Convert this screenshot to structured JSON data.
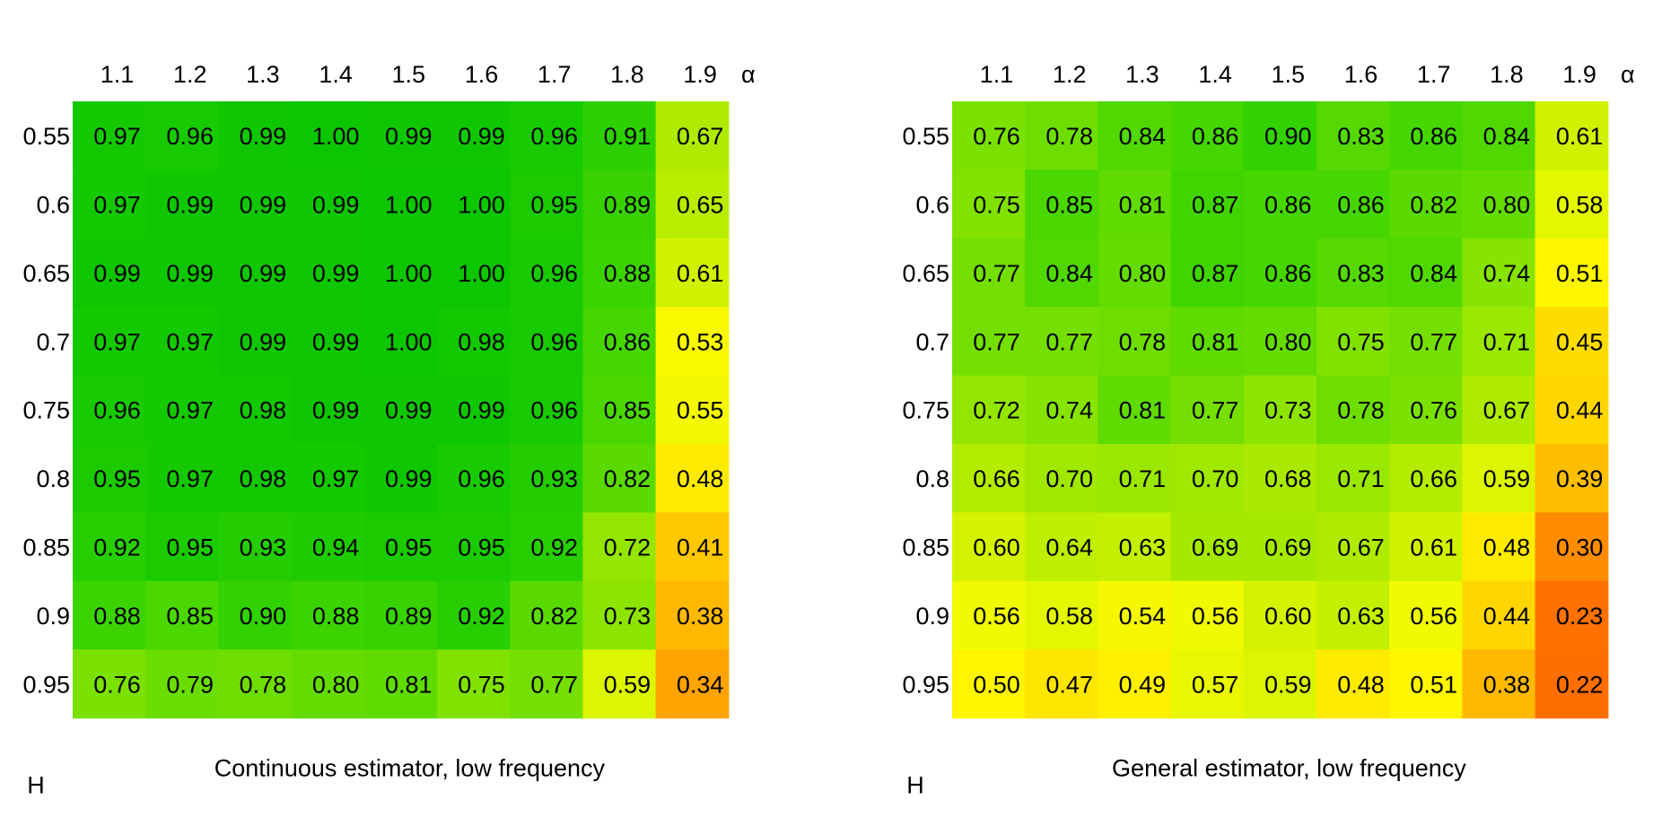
{
  "chart_data": [
    {
      "type": "heatmap",
      "title": "Continuous estimator, low frequency",
      "xlabel": "α",
      "ylabel": "H",
      "x": [
        "1.1",
        "1.2",
        "1.3",
        "1.4",
        "1.5",
        "1.6",
        "1.7",
        "1.8",
        "1.9"
      ],
      "y": [
        "0.55",
        "0.6",
        "0.65",
        "0.7",
        "0.75",
        "0.8",
        "0.85",
        "0.9",
        "0.95"
      ],
      "values": [
        [
          "0.97",
          "0.96",
          "0.99",
          "1.00",
          "0.99",
          "0.99",
          "0.96",
          "0.91",
          "0.67"
        ],
        [
          "0.97",
          "0.99",
          "0.99",
          "0.99",
          "1.00",
          "1.00",
          "0.95",
          "0.89",
          "0.65"
        ],
        [
          "0.99",
          "0.99",
          "0.99",
          "0.99",
          "1.00",
          "1.00",
          "0.96",
          "0.88",
          "0.61"
        ],
        [
          "0.97",
          "0.97",
          "0.99",
          "0.99",
          "1.00",
          "0.98",
          "0.96",
          "0.86",
          "0.53"
        ],
        [
          "0.96",
          "0.97",
          "0.98",
          "0.99",
          "0.99",
          "0.99",
          "0.96",
          "0.85",
          "0.55"
        ],
        [
          "0.95",
          "0.97",
          "0.98",
          "0.97",
          "0.99",
          "0.96",
          "0.93",
          "0.82",
          "0.48"
        ],
        [
          "0.92",
          "0.95",
          "0.93",
          "0.94",
          "0.95",
          "0.95",
          "0.92",
          "0.72",
          "0.41"
        ],
        [
          "0.88",
          "0.85",
          "0.90",
          "0.88",
          "0.89",
          "0.92",
          "0.82",
          "0.73",
          "0.38"
        ],
        [
          "0.76",
          "0.79",
          "0.78",
          "0.80",
          "0.81",
          "0.75",
          "0.77",
          "0.59",
          "0.34"
        ]
      ],
      "colormap": "red-orange-yellow-green (low to high)",
      "grid": false
    },
    {
      "type": "heatmap",
      "title": "General estimator, low frequency",
      "xlabel": "α",
      "ylabel": "H",
      "x": [
        "1.1",
        "1.2",
        "1.3",
        "1.4",
        "1.5",
        "1.6",
        "1.7",
        "1.8",
        "1.9"
      ],
      "y": [
        "0.55",
        "0.6",
        "0.65",
        "0.7",
        "0.75",
        "0.8",
        "0.85",
        "0.9",
        "0.95"
      ],
      "values": [
        [
          "0.76",
          "0.78",
          "0.84",
          "0.86",
          "0.90",
          "0.83",
          "0.86",
          "0.84",
          "0.61"
        ],
        [
          "0.75",
          "0.85",
          "0.81",
          "0.87",
          "0.86",
          "0.86",
          "0.82",
          "0.80",
          "0.58"
        ],
        [
          "0.77",
          "0.84",
          "0.80",
          "0.87",
          "0.86",
          "0.83",
          "0.84",
          "0.74",
          "0.51"
        ],
        [
          "0.77",
          "0.77",
          "0.78",
          "0.81",
          "0.80",
          "0.75",
          "0.77",
          "0.71",
          "0.45"
        ],
        [
          "0.72",
          "0.74",
          "0.81",
          "0.77",
          "0.73",
          "0.78",
          "0.76",
          "0.67",
          "0.44"
        ],
        [
          "0.66",
          "0.70",
          "0.71",
          "0.70",
          "0.68",
          "0.71",
          "0.66",
          "0.59",
          "0.39"
        ],
        [
          "0.60",
          "0.64",
          "0.63",
          "0.69",
          "0.69",
          "0.67",
          "0.61",
          "0.48",
          "0.30"
        ],
        [
          "0.56",
          "0.58",
          "0.54",
          "0.56",
          "0.60",
          "0.63",
          "0.56",
          "0.44",
          "0.23"
        ],
        [
          "0.50",
          "0.47",
          "0.49",
          "0.57",
          "0.59",
          "0.48",
          "0.51",
          "0.38",
          "0.22"
        ]
      ],
      "colormap": "red-orange-yellow-green (low to high)",
      "grid": false
    }
  ]
}
